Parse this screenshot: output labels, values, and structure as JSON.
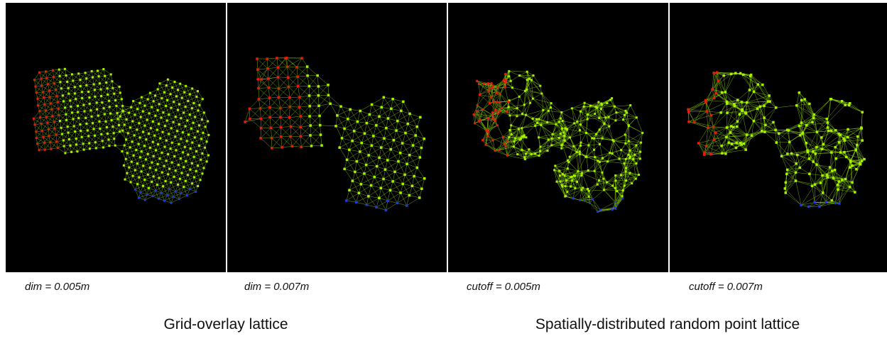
{
  "panels": [
    {
      "caption": "dim = 0.005m"
    },
    {
      "caption": "dim = 0.007m"
    },
    {
      "caption": "cutoff = 0.005m"
    },
    {
      "caption": "cutoff = 0.007m"
    }
  ],
  "groups": [
    {
      "label": "Grid-overlay lattice"
    },
    {
      "label": "Spatially-distributed random point lattice"
    }
  ],
  "colors": {
    "background": "#000000",
    "edge": "#8fd400",
    "node": "#a6f000",
    "fixed_node": "#e81c0c",
    "load_node": "#1f3bd6"
  }
}
